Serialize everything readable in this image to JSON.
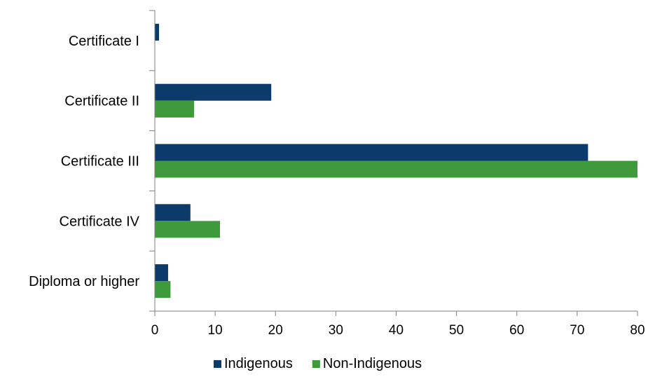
{
  "chart_data": {
    "type": "bar",
    "orientation": "horizontal",
    "categories": [
      "Certificate I",
      "Certificate II",
      "Certificate III",
      "Certificate IV",
      "Diploma or higher"
    ],
    "series": [
      {
        "name": "Indigenous",
        "color": "#0b3a6b",
        "values": [
          0.7,
          19.3,
          71.8,
          5.9,
          2.2
        ]
      },
      {
        "name": "Non-Indigenous",
        "color": "#3f9a3c",
        "values": [
          0,
          6.5,
          80.2,
          10.8,
          2.6
        ]
      }
    ],
    "xlim": [
      0,
      80
    ],
    "xticks": [
      0,
      10,
      20,
      30,
      40,
      50,
      60,
      70,
      80
    ],
    "title": "",
    "xlabel": "",
    "ylabel": "",
    "grid": false,
    "legend_position": "bottom-center",
    "axis_color": "#7f7f7f"
  }
}
